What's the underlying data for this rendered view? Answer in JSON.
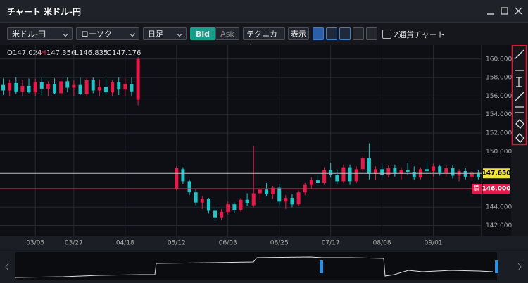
{
  "window": {
    "title": "チャート",
    "symbol": "米ドル-円"
  },
  "toolbar": {
    "symbol": "米ドル-円",
    "chart_type": "ローソク",
    "timeframe": "日足",
    "bid": "Bid",
    "ask": "Ask",
    "technical": "テクニカル",
    "display": "表示",
    "dual_chart": "2通貨チャート"
  },
  "ohlc_readout": [
    {
      "key": "O",
      "value": 147.024
    },
    {
      "key": "H",
      "value": 147.356
    },
    {
      "key": "L",
      "value": 146.835
    },
    {
      "key": "C",
      "value": 147.176
    }
  ],
  "chart_data": {
    "type": "candlestick",
    "categories": [
      null,
      null,
      null,
      null,
      null,
      "03/05",
      null,
      null,
      null,
      null,
      null,
      "03/27",
      null,
      null,
      null,
      null,
      null,
      null,
      null,
      "04/18",
      null,
      null,
      null,
      null,
      null,
      null,
      null,
      "05/12",
      null,
      null,
      null,
      null,
      null,
      null,
      null,
      "06/03",
      null,
      null,
      null,
      null,
      null,
      null,
      null,
      "06/25",
      null,
      null,
      null,
      null,
      null,
      null,
      null,
      "07/17",
      null,
      null,
      null,
      null,
      null,
      null,
      null,
      "08/08",
      null,
      null,
      null,
      null,
      null,
      null,
      null,
      "09/01",
      null,
      null,
      null,
      null,
      null,
      null,
      null
    ],
    "open": [
      157.2,
      156.6,
      157.4,
      156.5,
      157.1,
      156.4,
      157.5,
      156.8,
      157.3,
      156.3,
      157.6,
      156.9,
      157.2,
      156.2,
      157.7,
      156.6,
      157.0,
      156.4,
      157.5,
      156.7,
      157.3,
      155.6,
      null,
      null,
      null,
      null,
      null,
      146.0,
      148.1,
      146.8,
      145.6,
      144.5,
      144.9,
      143.6,
      142.9,
      143.5,
      144.3,
      143.7,
      144.8,
      144.2,
      145.5,
      145.9,
      145.4,
      146.1,
      144.6,
      145.0,
      144.3,
      145.6,
      146.4,
      146.9,
      146.6,
      148.0,
      147.5,
      146.8,
      148.3,
      146.8,
      148.1,
      149.3,
      147.6,
      148.1,
      147.5,
      148.2,
      147.6,
      148.0,
      147.8,
      147.2,
      148.1,
      147.9,
      148.4,
      147.7,
      148.2,
      147.4,
      147.9,
      147.3,
      147.7
    ],
    "high": [
      157.9,
      157.8,
      158.0,
      157.7,
      157.9,
      157.9,
      158.0,
      157.6,
      157.9,
      157.8,
      158.0,
      157.7,
      158.0,
      157.9,
      158.0,
      157.8,
      157.9,
      157.7,
      158.0,
      157.9,
      158.0,
      160.2,
      null,
      null,
      null,
      null,
      null,
      148.4,
      148.3,
      147.0,
      146.0,
      145.2,
      145.0,
      144.0,
      143.8,
      144.6,
      144.5,
      145.0,
      145.5,
      150.6,
      146.2,
      146.6,
      146.3,
      146.5,
      145.3,
      145.4,
      145.8,
      146.6,
      147.2,
      147.5,
      148.3,
      148.8,
      148.0,
      148.6,
      148.6,
      148.4,
      149.5,
      150.9,
      148.4,
      148.6,
      148.5,
      148.6,
      148.3,
      148.8,
      148.4,
      148.3,
      149.0,
      148.7,
      148.6,
      148.5,
      148.5,
      148.1,
      148.2,
      147.9,
      148.0
    ],
    "low": [
      156.1,
      156.0,
      156.2,
      156.0,
      156.3,
      156.0,
      156.1,
      156.0,
      156.2,
      156.0,
      156.4,
      156.0,
      156.1,
      156.0,
      156.3,
      156.0,
      156.2,
      156.0,
      156.1,
      156.0,
      156.0,
      155.0,
      null,
      null,
      null,
      null,
      null,
      145.8,
      146.5,
      145.3,
      144.2,
      143.8,
      143.3,
      142.5,
      142.6,
      143.2,
      143.4,
      143.5,
      144.1,
      144.0,
      144.8,
      145.2,
      144.9,
      144.2,
      143.8,
      144.0,
      144.1,
      145.3,
      146.0,
      146.3,
      146.4,
      147.2,
      146.5,
      146.6,
      146.4,
      146.6,
      147.9,
      147.0,
      146.9,
      147.2,
      147.2,
      147.3,
      147.0,
      147.5,
      146.9,
      147.0,
      147.6,
      147.3,
      147.4,
      147.3,
      147.1,
      146.8,
      147.0,
      146.9,
      147.0
    ],
    "close": [
      156.6,
      157.4,
      156.5,
      157.1,
      156.4,
      157.5,
      156.8,
      157.3,
      156.3,
      157.6,
      156.9,
      157.2,
      156.2,
      157.7,
      156.6,
      157.0,
      156.4,
      157.5,
      156.7,
      157.3,
      156.5,
      160.0,
      null,
      null,
      null,
      null,
      null,
      148.2,
      146.8,
      145.6,
      144.5,
      144.9,
      143.6,
      142.9,
      143.5,
      144.3,
      143.7,
      144.8,
      144.4,
      145.5,
      145.9,
      145.4,
      146.1,
      144.6,
      145.0,
      144.3,
      145.6,
      146.4,
      146.9,
      146.6,
      148.0,
      147.5,
      146.8,
      148.3,
      146.8,
      148.1,
      149.3,
      147.6,
      148.1,
      147.5,
      148.2,
      147.6,
      148.0,
      147.8,
      147.2,
      148.1,
      147.9,
      148.4,
      147.7,
      148.2,
      147.4,
      147.9,
      147.3,
      147.7,
      147.2
    ],
    "up_color": "#e8194b",
    "down_color": "#22c4c8",
    "ylim": [
      140.9,
      161.2
    ],
    "yticks": [
      {
        "value": 160,
        "label": "160.000"
      },
      {
        "value": 158,
        "label": "158.000"
      },
      {
        "value": 156,
        "label": "156.000"
      },
      {
        "value": 154,
        "label": "154.000"
      },
      {
        "value": 152,
        "label": "152.000"
      },
      {
        "value": 150,
        "label": "150.000"
      },
      {
        "value": 144,
        "label": "144.000"
      },
      {
        "value": 142,
        "label": "142.000"
      }
    ],
    "grid": true,
    "price_lines": [
      {
        "value": 147.65,
        "label": "147.650",
        "color": "#f2e33a"
      },
      {
        "value": 146,
        "label": "146.000",
        "tag": "買",
        "color": "#e8194b"
      }
    ]
  }
}
